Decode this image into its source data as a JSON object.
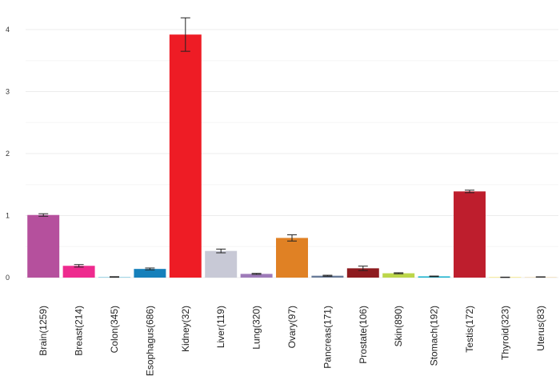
{
  "chart_data": {
    "type": "bar",
    "categories": [
      "Brain(1259)",
      "Breast(214)",
      "Colon(345)",
      "Esophagus(686)",
      "Kidney(32)",
      "Liver(119)",
      "Lung(320)",
      "Ovary(97)",
      "Pancreas(171)",
      "Prostate(106)",
      "Skin(890)",
      "Stomach(192)",
      "Testis(172)",
      "Thyroid(323)",
      "Uterus(83)"
    ],
    "values": [
      1.01,
      0.19,
      0.01,
      0.14,
      3.92,
      0.43,
      0.06,
      0.64,
      0.03,
      0.15,
      0.07,
      0.02,
      1.39,
      0.005,
      0.01
    ],
    "errors": [
      0.02,
      0.02,
      0.005,
      0.015,
      0.27,
      0.03,
      0.008,
      0.05,
      0.008,
      0.035,
      0.008,
      0.005,
      0.02,
      0.003,
      0.003
    ],
    "colors": [
      "#b5509d",
      "#ee2a8e",
      "#9fd6e6",
      "#1680bb",
      "#ee1c25",
      "#c8c9d6",
      "#9e7bb9",
      "#e08124",
      "#687b98",
      "#8e1b1f",
      "#bcd64a",
      "#1ab3cf",
      "#be1e2d",
      "#f8ec9d",
      "#f3e5c8"
    ],
    "yticks": [
      "0",
      "1",
      "2",
      "3",
      "4"
    ],
    "ylim": [
      0,
      4.2
    ],
    "grid": true,
    "title": "",
    "xlabel": "",
    "ylabel": ""
  }
}
